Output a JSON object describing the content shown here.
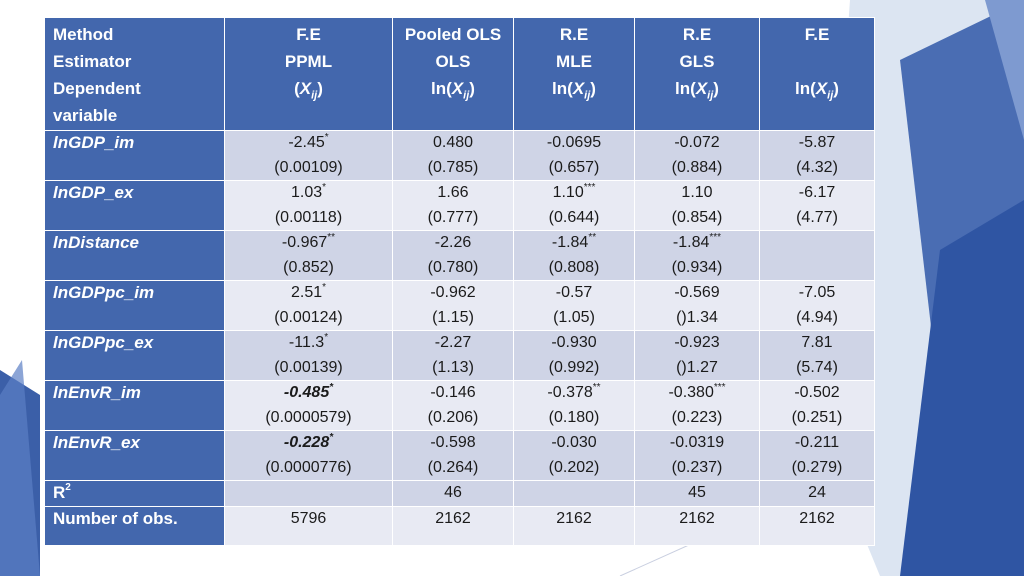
{
  "colors": {
    "header": "#4367ad",
    "band_dark": "#cfd4e6",
    "band_light": "#e8eaf3",
    "deco_blue": "#3b5fa8"
  },
  "header": {
    "corner": [
      "Method",
      "Estimator",
      "Dependent",
      "variable"
    ],
    "columns": [
      {
        "method": "F.E",
        "estimator": "PPML",
        "dep_pre": "(",
        "dep_var": "X",
        "dep_sub": "ij",
        "dep_post": ")"
      },
      {
        "method": "Pooled OLS",
        "estimator": "OLS",
        "dep_pre": "ln(",
        "dep_var": "X",
        "dep_sub": "ij",
        "dep_post": ")"
      },
      {
        "method": "R.E",
        "estimator": "MLE",
        "dep_pre": "ln(",
        "dep_var": "X",
        "dep_sub": "ij",
        "dep_post": ")"
      },
      {
        "method": "R.E",
        "estimator": "GLS",
        "dep_pre": "ln(",
        "dep_var": "X",
        "dep_sub": "ij",
        "dep_post": ")"
      },
      {
        "method": "F.E",
        "estimator": "",
        "dep_pre": "ln(",
        "dep_var": "X",
        "dep_sub": "ij",
        "dep_post": ")"
      }
    ]
  },
  "rows": [
    {
      "prefix": "ln",
      "name": "GDP_im",
      "cells": [
        {
          "coef": "-2.45",
          "stars": "*",
          "se": "(0.00109)"
        },
        {
          "coef": "0.480",
          "stars": "",
          "se": "(0.785)"
        },
        {
          "coef": "-0.0695",
          "stars": "",
          "se": "(0.657)"
        },
        {
          "coef": "-0.072",
          "stars": "",
          "se": "(0.884)"
        },
        {
          "coef": "-5.87",
          "stars": "",
          "se": "(4.32)"
        }
      ]
    },
    {
      "prefix": "ln",
      "name": "GDP_ex",
      "cells": [
        {
          "coef": "1.03",
          "stars": "*",
          "se": "(0.00118)"
        },
        {
          "coef": "1.66",
          "stars": "",
          "se": "(0.777)"
        },
        {
          "coef": "1.10",
          "stars": "***",
          "se": "(0.644)"
        },
        {
          "coef": "1.10",
          "stars": "",
          "se": "(0.854)"
        },
        {
          "coef": "-6.17",
          "stars": "",
          "se": "(4.77)"
        }
      ]
    },
    {
      "prefix": "ln",
      "name": "Distance",
      "cells": [
        {
          "coef": "-0.967",
          "stars": "**",
          "se": "(0.852)"
        },
        {
          "coef": "-2.26",
          "stars": "",
          "se": "(0.780)"
        },
        {
          "coef": "-1.84",
          "stars": "**",
          "se": "(0.808)"
        },
        {
          "coef": "-1.84",
          "stars": "***",
          "se": "(0.934)"
        },
        {
          "coef": "",
          "stars": "",
          "se": ""
        }
      ]
    },
    {
      "prefix": "ln",
      "name": "GDPpc_im",
      "cells": [
        {
          "coef": "2.51",
          "stars": "*",
          "se": "(0.00124)"
        },
        {
          "coef": "-0.962",
          "stars": "",
          "se": "(1.15)"
        },
        {
          "coef": "-0.57",
          "stars": "",
          "se": "(1.05)"
        },
        {
          "coef": "-0.569",
          "stars": "",
          "se": "()1.34"
        },
        {
          "coef": "-7.05",
          "stars": "",
          "se": "(4.94)"
        }
      ]
    },
    {
      "prefix": "ln",
      "name": "GDPpc_ex",
      "cells": [
        {
          "coef": "-11.3",
          "stars": "*",
          "se": "(0.00139)"
        },
        {
          "coef": "-2.27",
          "stars": "",
          "se": "(1.13)"
        },
        {
          "coef": "-0.930",
          "stars": "",
          "se": "(0.992)"
        },
        {
          "coef": "-0.923",
          "stars": "",
          "se": "()1.27"
        },
        {
          "coef": "7.81",
          "stars": "",
          "se": "(5.74)"
        }
      ]
    },
    {
      "prefix": "ln",
      "name": "EnvR_im",
      "cells": [
        {
          "coef": "-0.485",
          "stars": "*",
          "se": "(0.0000579)",
          "emph": true
        },
        {
          "coef": "-0.146",
          "stars": "",
          "se": "(0.206)"
        },
        {
          "coef": "-0.378",
          "stars": "**",
          "se": "(0.180)"
        },
        {
          "coef": "-0.380",
          "stars": "***",
          "se": "(0.223)"
        },
        {
          "coef": "-0.502",
          "stars": "",
          "se": "(0.251)"
        }
      ]
    },
    {
      "prefix": "ln",
      "name": "EnvR_ex",
      "cells": [
        {
          "coef": "-0.228",
          "stars": "*",
          "se": "(0.0000776)",
          "emph": true
        },
        {
          "coef": "-0.598",
          "stars": "",
          "se": "(0.264)"
        },
        {
          "coef": "-0.030",
          "stars": "",
          "se": "(0.202)"
        },
        {
          "coef": "-0.0319",
          "stars": "",
          "se": "(0.237)"
        },
        {
          "coef": "-0.211",
          "stars": "",
          "se": "(0.279)"
        }
      ]
    }
  ],
  "r2": {
    "label": "R",
    "sup": "2",
    "values": [
      "",
      "46",
      "",
      "45",
      "24"
    ]
  },
  "nobs": {
    "label": "Number of obs.",
    "values": [
      "5796",
      "2162",
      "2162",
      "2162",
      "2162"
    ]
  }
}
